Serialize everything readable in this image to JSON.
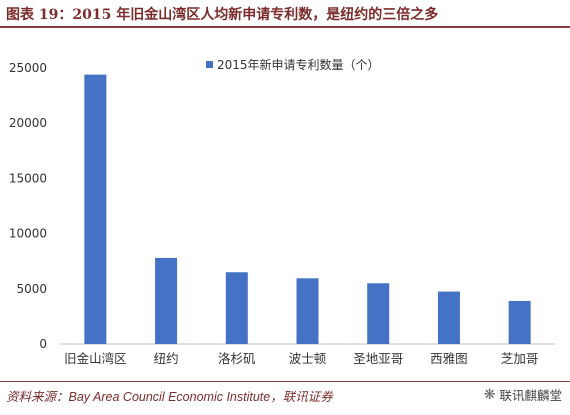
{
  "header": {
    "title": "图表 19：2015 年旧金山湾区人均新申请专利数，是纽约的三倍之多"
  },
  "footer": {
    "source": "资料来源：Bay Area Council Economic Institute，联讯证券",
    "watermark": "联讯麒麟堂"
  },
  "colors": {
    "bar": "#4472c4",
    "accent": "#7b2d2d"
  },
  "chart_data": {
    "type": "bar",
    "categories": [
      "旧金山湾区",
      "纽约",
      "洛杉矶",
      "波士顿",
      "圣地亚哥",
      "西雅图",
      "芝加哥"
    ],
    "series": [
      {
        "name": "2015年新申请专利数量（个）",
        "values": [
          24400,
          7800,
          6500,
          5950,
          5500,
          4750,
          3900
        ]
      }
    ],
    "yticks": [
      0,
      5000,
      10000,
      15000,
      20000,
      25000
    ],
    "ylim": [
      0,
      25000
    ],
    "legend": "top-center",
    "grid": false
  }
}
